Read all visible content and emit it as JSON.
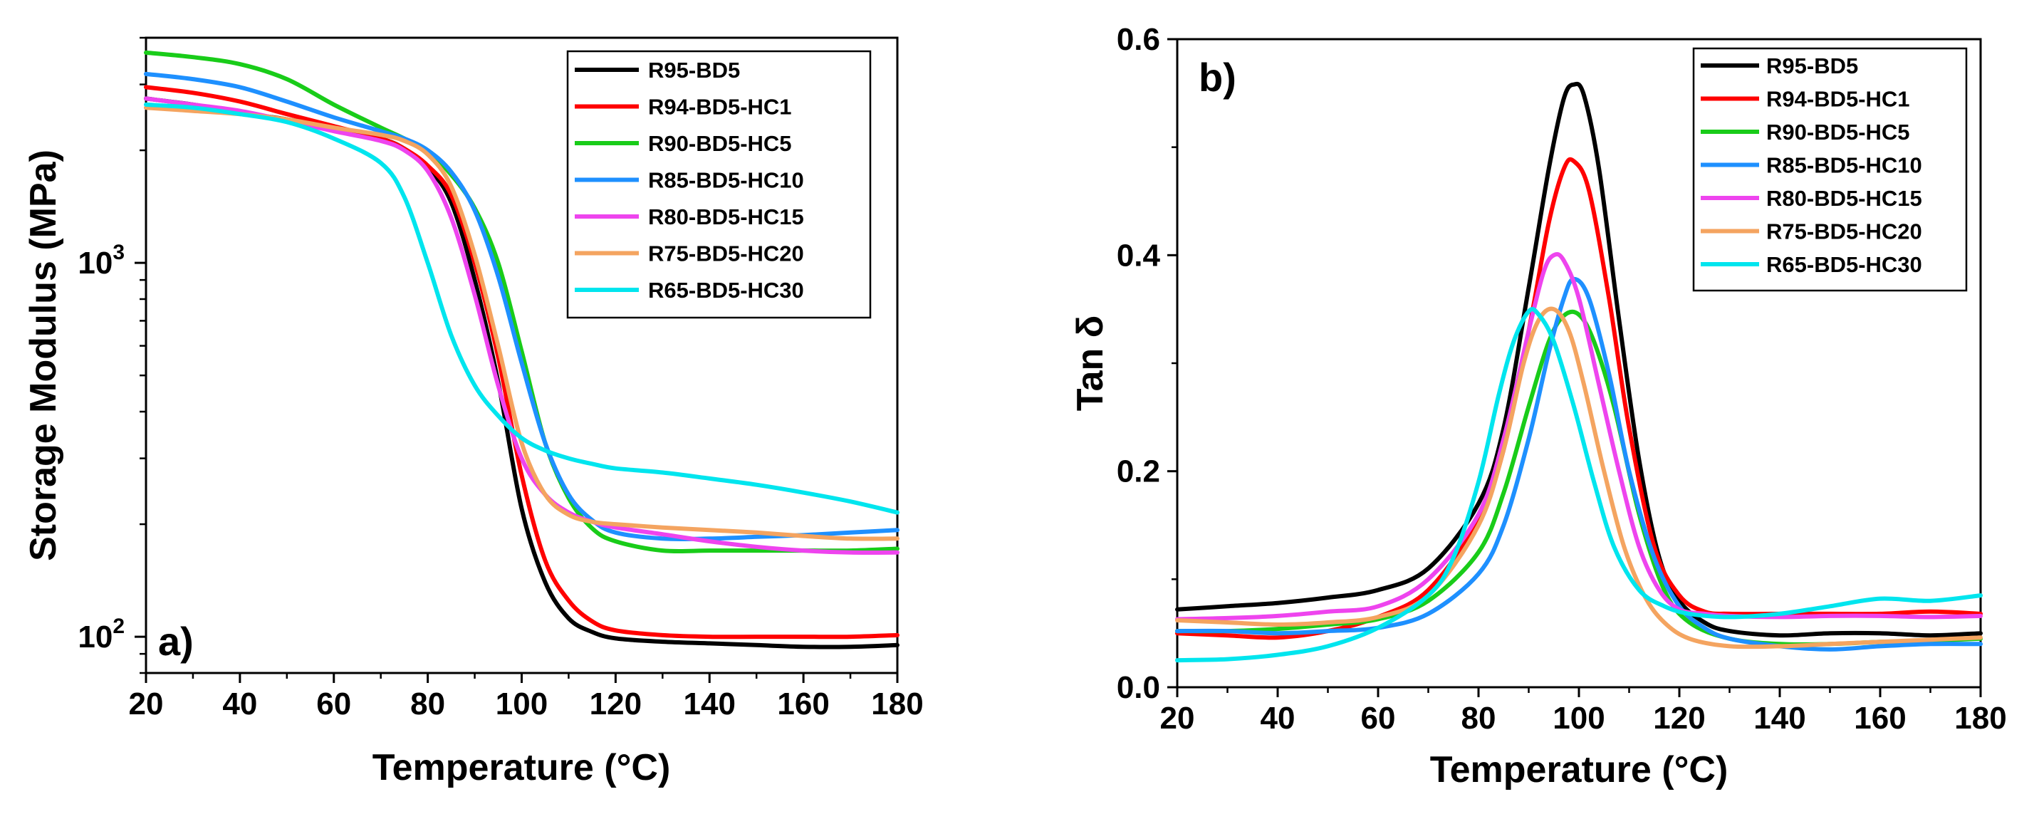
{
  "chart_data": [
    {
      "type": "line",
      "panel_label": "a)",
      "xlabel": "Temperature (°C)",
      "ylabel": "Storage Modulus (MPa)",
      "yscale": "log",
      "xlim": [
        20,
        180
      ],
      "ylim": [
        80,
        4000
      ],
      "xticks": [
        "20",
        "40",
        "60",
        "80",
        "100",
        "120",
        "140",
        "160",
        "180"
      ],
      "yticks": [
        {
          "label": "10",
          "exp": "2",
          "value": 100
        },
        {
          "label": "10",
          "exp": "3",
          "value": 1000
        }
      ],
      "legend_position": "top-right",
      "series": [
        {
          "name": "R95-BD5",
          "color": "#000000",
          "x": [
            20,
            30,
            40,
            50,
            60,
            70,
            75,
            80,
            85,
            90,
            95,
            100,
            105,
            110,
            115,
            120,
            130,
            140,
            150,
            160,
            170,
            180
          ],
          "y": [
            2750,
            2650,
            2520,
            2420,
            2300,
            2150,
            2020,
            1800,
            1450,
            900,
            480,
            220,
            140,
            112,
            103,
            99,
            97,
            96,
            95,
            94,
            94,
            95
          ]
        },
        {
          "name": "R94-BD5-HC1",
          "color": "#ff0000",
          "x": [
            20,
            30,
            40,
            50,
            60,
            70,
            75,
            80,
            85,
            90,
            95,
            100,
            105,
            110,
            115,
            120,
            130,
            140,
            150,
            160,
            170,
            180
          ],
          "y": [
            2950,
            2850,
            2700,
            2500,
            2320,
            2150,
            2020,
            1820,
            1520,
            1000,
            560,
            270,
            160,
            125,
            110,
            104,
            101,
            100,
            100,
            100,
            100,
            101
          ]
        },
        {
          "name": "R90-BD5-HC5",
          "color": "#19cc19",
          "x": [
            20,
            30,
            40,
            50,
            60,
            70,
            75,
            80,
            85,
            90,
            95,
            100,
            105,
            110,
            115,
            120,
            130,
            140,
            150,
            160,
            170,
            180
          ],
          "y": [
            3650,
            3550,
            3400,
            3100,
            2650,
            2300,
            2150,
            1980,
            1720,
            1400,
            1000,
            580,
            330,
            235,
            195,
            180,
            170,
            170,
            170,
            170,
            170,
            172
          ]
        },
        {
          "name": "R85-BD5-HC10",
          "color": "#1e90ff",
          "x": [
            20,
            30,
            40,
            50,
            60,
            70,
            75,
            80,
            85,
            90,
            95,
            100,
            105,
            110,
            115,
            120,
            130,
            140,
            150,
            160,
            170,
            180
          ],
          "y": [
            3200,
            3100,
            2950,
            2700,
            2450,
            2250,
            2150,
            2000,
            1750,
            1380,
            920,
            540,
            330,
            240,
            205,
            190,
            183,
            183,
            185,
            187,
            190,
            193
          ]
        },
        {
          "name": "R80-BD5-HC15",
          "color": "#ee44ee",
          "x": [
            20,
            30,
            40,
            50,
            60,
            70,
            75,
            80,
            85,
            90,
            95,
            100,
            105,
            110,
            115,
            120,
            130,
            140,
            150,
            160,
            170,
            180
          ],
          "y": [
            2750,
            2650,
            2550,
            2400,
            2250,
            2120,
            2000,
            1760,
            1320,
            820,
            470,
            300,
            240,
            215,
            203,
            196,
            188,
            180,
            174,
            170,
            168,
            168
          ]
        },
        {
          "name": "R75-BD5-HC20",
          "color": "#f4a460",
          "x": [
            20,
            30,
            40,
            50,
            60,
            70,
            75,
            80,
            85,
            90,
            95,
            100,
            105,
            110,
            115,
            120,
            130,
            140,
            150,
            160,
            170,
            180
          ],
          "y": [
            2600,
            2550,
            2500,
            2420,
            2300,
            2200,
            2120,
            1950,
            1600,
            1050,
            600,
            330,
            240,
            212,
            203,
            200,
            196,
            193,
            190,
            186,
            183,
            183
          ]
        },
        {
          "name": "R65-BD5-HC30",
          "color": "#00e5ee",
          "x": [
            20,
            30,
            40,
            50,
            60,
            70,
            75,
            80,
            85,
            90,
            95,
            100,
            105,
            110,
            115,
            120,
            130,
            140,
            150,
            160,
            170,
            180
          ],
          "y": [
            2650,
            2600,
            2500,
            2380,
            2150,
            1850,
            1500,
            1000,
            640,
            470,
            390,
            340,
            315,
            300,
            290,
            282,
            275,
            265,
            255,
            243,
            230,
            215
          ]
        }
      ]
    },
    {
      "type": "line",
      "panel_label": "b)",
      "xlabel": "Temperature (°C)",
      "ylabel": "Tan δ",
      "xlim": [
        20,
        180
      ],
      "ylim": [
        0.0,
        0.6
      ],
      "xticks": [
        "20",
        "40",
        "60",
        "80",
        "100",
        "120",
        "140",
        "160",
        "180"
      ],
      "yticks": [
        "0.0",
        "0.2",
        "0.4",
        "0.6"
      ],
      "legend_position": "top-right",
      "series": [
        {
          "name": "R95-BD5",
          "color": "#000000",
          "x": [
            20,
            30,
            40,
            50,
            60,
            70,
            80,
            85,
            90,
            94,
            97,
            99,
            101,
            104,
            108,
            112,
            116,
            120,
            125,
            130,
            140,
            150,
            160,
            170,
            180
          ],
          "y": [
            0.072,
            0.075,
            0.078,
            0.083,
            0.09,
            0.11,
            0.17,
            0.24,
            0.37,
            0.48,
            0.545,
            0.558,
            0.548,
            0.48,
            0.34,
            0.21,
            0.12,
            0.08,
            0.06,
            0.052,
            0.048,
            0.05,
            0.05,
            0.048,
            0.05
          ]
        },
        {
          "name": "R94-BD5-HC1",
          "color": "#ff0000",
          "x": [
            20,
            30,
            40,
            50,
            60,
            70,
            80,
            85,
            90,
            94,
            97,
            99,
            102,
            106,
            110,
            115,
            120,
            125,
            130,
            140,
            150,
            160,
            170,
            180
          ],
          "y": [
            0.05,
            0.048,
            0.046,
            0.052,
            0.065,
            0.09,
            0.155,
            0.22,
            0.33,
            0.43,
            0.48,
            0.487,
            0.46,
            0.36,
            0.24,
            0.13,
            0.085,
            0.07,
            0.068,
            0.068,
            0.068,
            0.068,
            0.07,
            0.068
          ]
        },
        {
          "name": "R90-BD5-HC5",
          "color": "#19cc19",
          "x": [
            20,
            30,
            40,
            50,
            60,
            70,
            80,
            85,
            90,
            94,
            97,
            100,
            103,
            107,
            112,
            117,
            122,
            130,
            140,
            150,
            160,
            170,
            180
          ],
          "y": [
            0.052,
            0.052,
            0.054,
            0.058,
            0.063,
            0.08,
            0.125,
            0.18,
            0.26,
            0.32,
            0.344,
            0.345,
            0.32,
            0.26,
            0.16,
            0.09,
            0.06,
            0.045,
            0.04,
            0.04,
            0.042,
            0.043,
            0.045
          ]
        },
        {
          "name": "R85-BD5-HC10",
          "color": "#1e90ff",
          "x": [
            20,
            30,
            40,
            50,
            60,
            70,
            80,
            85,
            90,
            94,
            97,
            99,
            102,
            106,
            110,
            115,
            120,
            125,
            130,
            140,
            150,
            160,
            170,
            180
          ],
          "y": [
            0.052,
            0.052,
            0.05,
            0.052,
            0.055,
            0.068,
            0.105,
            0.15,
            0.23,
            0.31,
            0.36,
            0.378,
            0.36,
            0.29,
            0.2,
            0.12,
            0.075,
            0.055,
            0.045,
            0.038,
            0.035,
            0.038,
            0.04,
            0.04
          ]
        },
        {
          "name": "R80-BD5-HC15",
          "color": "#ee44ee",
          "x": [
            20,
            30,
            40,
            50,
            60,
            70,
            80,
            85,
            90,
            93,
            95,
            97,
            100,
            104,
            108,
            112,
            116,
            120,
            125,
            130,
            140,
            150,
            160,
            170,
            180
          ],
          "y": [
            0.063,
            0.064,
            0.066,
            0.07,
            0.075,
            0.1,
            0.16,
            0.23,
            0.33,
            0.385,
            0.4,
            0.395,
            0.36,
            0.28,
            0.2,
            0.13,
            0.09,
            0.072,
            0.068,
            0.066,
            0.065,
            0.066,
            0.066,
            0.065,
            0.066
          ]
        },
        {
          "name": "R75-BD5-HC20",
          "color": "#f4a460",
          "x": [
            20,
            30,
            40,
            50,
            60,
            70,
            80,
            85,
            89,
            92,
            95,
            98,
            101,
            105,
            109,
            113,
            117,
            122,
            130,
            140,
            150,
            160,
            170,
            180
          ],
          "y": [
            0.062,
            0.06,
            0.058,
            0.06,
            0.065,
            0.085,
            0.15,
            0.22,
            0.3,
            0.34,
            0.35,
            0.33,
            0.28,
            0.2,
            0.13,
            0.085,
            0.06,
            0.045,
            0.038,
            0.038,
            0.04,
            0.042,
            0.044,
            0.046
          ]
        },
        {
          "name": "R65-BD5-HC30",
          "color": "#00e5ee",
          "x": [
            20,
            30,
            40,
            50,
            60,
            70,
            75,
            80,
            84,
            87,
            90,
            92,
            95,
            99,
            103,
            107,
            112,
            117,
            122,
            130,
            140,
            150,
            160,
            170,
            180
          ],
          "y": [
            0.025,
            0.026,
            0.03,
            0.038,
            0.055,
            0.085,
            0.12,
            0.19,
            0.27,
            0.32,
            0.348,
            0.345,
            0.32,
            0.26,
            0.19,
            0.13,
            0.09,
            0.075,
            0.068,
            0.065,
            0.068,
            0.075,
            0.082,
            0.08,
            0.085
          ]
        }
      ]
    }
  ]
}
